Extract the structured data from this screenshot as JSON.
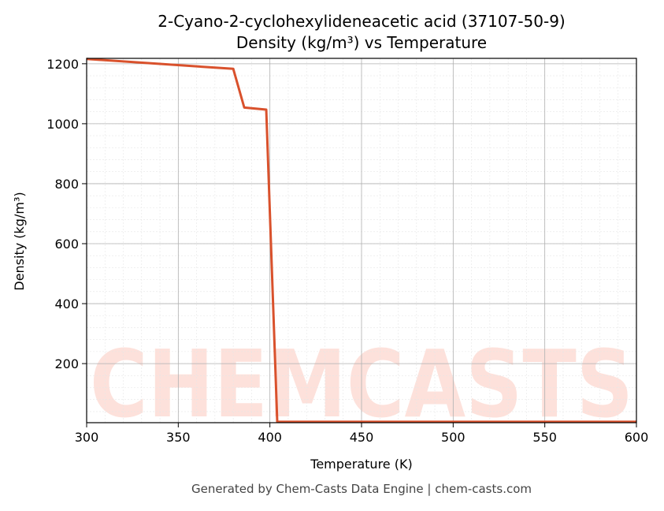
{
  "chart_data": {
    "type": "line",
    "title": [
      "2-Cyano-2-cyclohexylideneacetic acid (37107-50-9)",
      "Density (kg/m³) vs Temperature"
    ],
    "x_label": "Temperature (K)",
    "y_label": "Density (kg/m³)",
    "footer": "Generated by Chem-Casts Data Engine | chem-casts.com",
    "watermark": "CHEMCASTS",
    "x": [
      300,
      380,
      386,
      398,
      404,
      600
    ],
    "series": [
      {
        "name": "Density",
        "color": "#d9512c",
        "values": [
          1216,
          1183,
          1054,
          1047,
          6,
          6
        ]
      }
    ],
    "xlim": [
      300,
      600
    ],
    "xticks": [
      300,
      350,
      400,
      450,
      500,
      550,
      600
    ],
    "ylim": [
      3,
      1218
    ],
    "yticks": [
      200,
      400,
      600,
      800,
      1000,
      1200
    ],
    "grid": true
  }
}
